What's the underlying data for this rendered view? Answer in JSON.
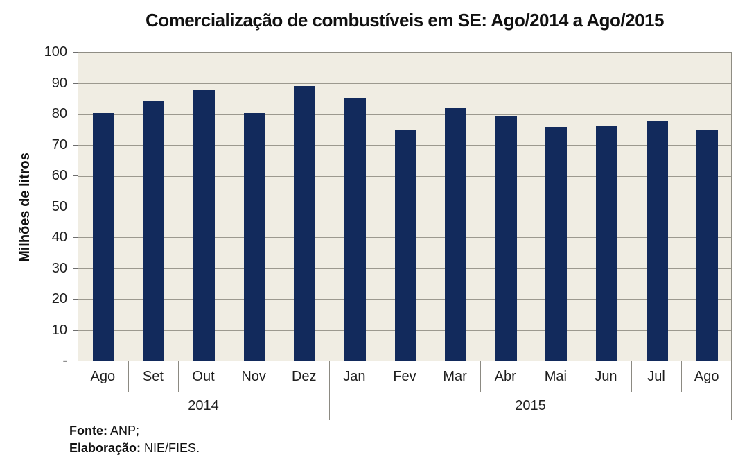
{
  "chart_data": {
    "type": "bar",
    "title": "Comercialização de combustíveis em SE: Ago/2014 a Ago/2015",
    "xlabel": "",
    "ylabel": "Milhões de litros",
    "ylim": [
      0,
      100
    ],
    "grid": true,
    "legend": false,
    "ytick_values": [
      0,
      10,
      20,
      30,
      40,
      50,
      60,
      70,
      80,
      90,
      100
    ],
    "ytick_labels": [
      "-",
      "10",
      "20",
      "30",
      "40",
      "50",
      "60",
      "70",
      "80",
      "90",
      "100"
    ],
    "categories": [
      "Ago",
      "Set",
      "Out",
      "Nov",
      "Dez",
      "Jan",
      "Fev",
      "Mar",
      "Abr",
      "Mai",
      "Jun",
      "Jul",
      "Ago"
    ],
    "category_groups": [
      {
        "label": "2014",
        "span": 5
      },
      {
        "label": "2015",
        "span": 8
      }
    ],
    "series": [
      {
        "name": "Milhões de litros",
        "values": [
          80.5,
          84.3,
          87.9,
          80.5,
          89.2,
          85.4,
          74.8,
          82.0,
          79.4,
          75.8,
          76.4,
          77.7,
          74.8
        ]
      }
    ],
    "colors": {
      "bar": "#122a5c",
      "plot_background": "#f0ede3",
      "gridline": "#9c998f",
      "axis_line": "#6f6f6f",
      "text": "#1f1f1f"
    }
  },
  "footer": {
    "source_label": "Fonte:",
    "source_value": " ANP;",
    "elaboration_label": "Elaboração:",
    "elaboration_value": " NIE/FIES."
  }
}
